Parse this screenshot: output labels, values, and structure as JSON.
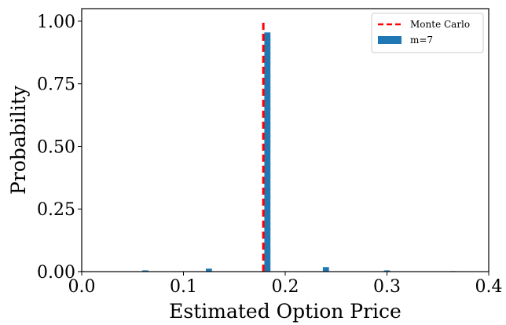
{
  "chart_data": {
    "type": "bar",
    "xlabel": "Estimated Option Price",
    "ylabel": "Probability",
    "xlim": [
      0.0,
      0.4
    ],
    "ylim": [
      0.0,
      1.05
    ],
    "xticks": [
      0.0,
      0.1,
      0.2,
      0.3,
      0.4
    ],
    "xtick_labels": [
      "0.0",
      "0.1",
      "0.2",
      "0.3",
      "0.4"
    ],
    "yticks": [
      0.0,
      0.25,
      0.5,
      0.75,
      1.0
    ],
    "ytick_labels": [
      "0.00",
      "0.25",
      "0.50",
      "0.75",
      "1.00"
    ],
    "grid": false,
    "legend_position": "top-right",
    "series": [
      {
        "name": "m=7",
        "color": "#1f77b4",
        "bar_width": 0.006,
        "x": [
          0.0,
          0.0625,
          0.125,
          0.1825,
          0.24,
          0.3,
          0.365
        ],
        "values": [
          0.002,
          0.005,
          0.012,
          0.955,
          0.018,
          0.005,
          0.002
        ]
      }
    ],
    "reference_lines": [
      {
        "name": "Monte Carlo",
        "color": "#ff0000",
        "style": "dashed",
        "x": 0.1785,
        "y_range": [
          0.0,
          1.0
        ]
      }
    ]
  }
}
